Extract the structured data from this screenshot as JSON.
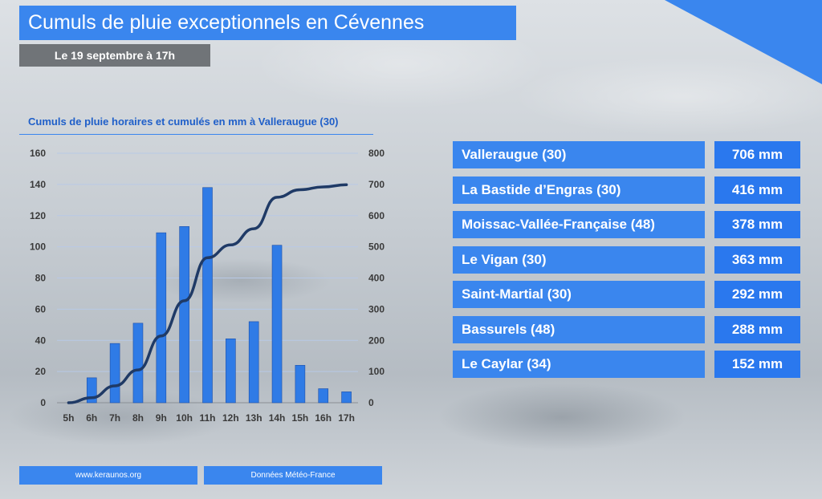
{
  "header": {
    "title": "Cumuls de pluie exceptionnels en Cévennes",
    "date": "Le 19 septembre à 17h"
  },
  "chart_title": "Cumuls de pluie horaires et cumulés en mm à Valleraugue (30)",
  "chart_data": {
    "type": "bar",
    "categories": [
      "5h",
      "6h",
      "7h",
      "8h",
      "9h",
      "10h",
      "11h",
      "12h",
      "13h",
      "14h",
      "15h",
      "16h",
      "17h"
    ],
    "series": [
      {
        "type": "bar",
        "axis": "left",
        "values": [
          0,
          16,
          38,
          51,
          109,
          113,
          138,
          41,
          52,
          101,
          24,
          9,
          7
        ]
      },
      {
        "type": "line",
        "axis": "right",
        "values": [
          0,
          16,
          54,
          105,
          214,
          327,
          465,
          506,
          558,
          659,
          683,
          692,
          699
        ]
      }
    ],
    "ylim_left": [
      0,
      160
    ],
    "ylim_right": [
      0,
      800
    ],
    "yticks_left": [
      "0",
      "20",
      "40",
      "60",
      "80",
      "100",
      "120",
      "140",
      "160"
    ],
    "yticks_right": [
      "0",
      "100",
      "200",
      "300",
      "400",
      "500",
      "600",
      "700",
      "800"
    ],
    "bar_color": "#2f7be6",
    "line_color": "#1f3a66",
    "grid": true
  },
  "ranking": [
    {
      "name": "Valleraugue (30)",
      "value": "706 mm"
    },
    {
      "name": "La Bastide d’Engras (30)",
      "value": "416 mm"
    },
    {
      "name": "Moissac-Vallée-Française (48)",
      "value": "378 mm"
    },
    {
      "name": "Le Vigan (30)",
      "value": "363 mm"
    },
    {
      "name": "Saint-Martial (30)",
      "value": "292 mm"
    },
    {
      "name": "Bassurels (48)",
      "value": "288 mm"
    },
    {
      "name": "Le Caylar (34)",
      "value": "152 mm"
    }
  ],
  "footer": {
    "site": "www.keraunos.org",
    "source": "Données Météo-France"
  },
  "colors": {
    "accent": "#3a86ee",
    "date_bg": "#707478"
  }
}
